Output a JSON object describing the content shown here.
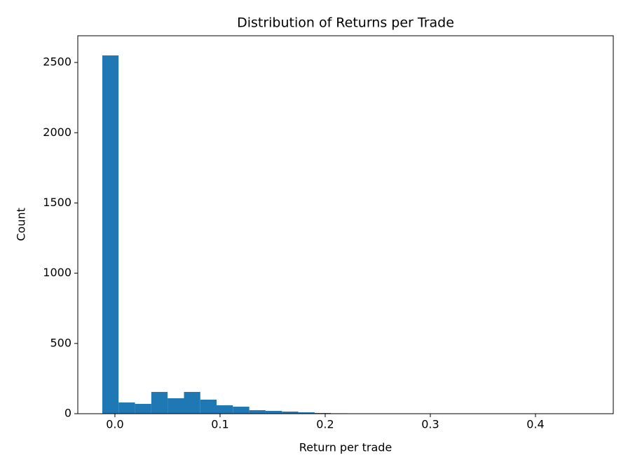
{
  "chart_data": {
    "type": "histogram",
    "title": "Distribution of Returns per Trade",
    "x_label": "Return per trade",
    "y_label": "Count",
    "bins": [
      -0.012,
      0.0035,
      0.0191,
      0.0346,
      0.0501,
      0.0657,
      0.0812,
      0.0967,
      0.1122,
      0.1278,
      0.1433,
      0.1588,
      0.1744,
      0.1899,
      0.2054,
      0.221,
      0.2365,
      0.252,
      0.2675,
      0.2831,
      0.2986,
      0.3141,
      0.3297,
      0.3452,
      0.3607,
      0.3763,
      0.3918,
      0.4073,
      0.4228,
      0.4384,
      0.4539
    ],
    "values": [
      2550,
      80,
      70,
      155,
      110,
      155,
      100,
      60,
      50,
      25,
      20,
      15,
      10,
      5,
      3,
      2,
      1,
      1,
      1,
      1,
      0,
      1,
      0,
      0,
      0,
      0,
      1,
      0,
      0,
      1
    ],
    "color": "#1f77b4",
    "xlim": [
      -0.0353,
      0.474
    ],
    "xticks": [
      {
        "value": 0,
        "label": "0.0"
      },
      {
        "value": 0.1,
        "label": "0.1"
      },
      {
        "value": 0.2,
        "label": "0.2"
      },
      {
        "value": 0.3,
        "label": "0.3"
      },
      {
        "value": 0.4,
        "label": "0.4"
      }
    ],
    "ylim": [
      0,
      2690
    ],
    "yticks": [
      0,
      500,
      1000,
      1500,
      2000,
      2500
    ]
  }
}
